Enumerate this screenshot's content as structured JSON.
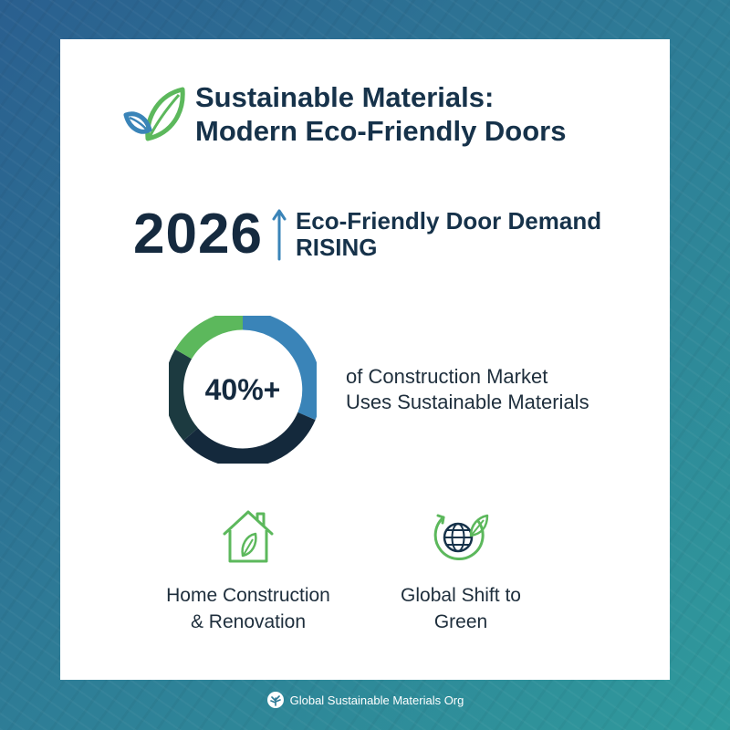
{
  "header": {
    "title_line1": "Sustainable Materials:",
    "title_line2": "Modern Eco-Friendly Doors",
    "icon": "leaf-icon"
  },
  "stat": {
    "year": "2026",
    "line1": "Eco-Friendly Door Demand",
    "line2": "RISING",
    "icon": "arrow-up-icon"
  },
  "market": {
    "share_label": "40%+",
    "share_percent": 40,
    "line1": "of Construction Market",
    "line2": "Uses Sustainable Materials"
  },
  "features": [
    {
      "icon": "house-leaf-icon",
      "line1": "Home Construction",
      "line2": "& Renovation"
    },
    {
      "icon": "globe-leaf-icon",
      "line1": "Global Shift to",
      "line2": "Green"
    }
  ],
  "footer": {
    "org": "Global Sustainable Materials Org",
    "icon": "tree-logo-icon"
  },
  "colors": {
    "green": "#5cb85c",
    "blue": "#3a84b8",
    "navy": "#152a3f",
    "dark_teal": "#1c3a40"
  }
}
